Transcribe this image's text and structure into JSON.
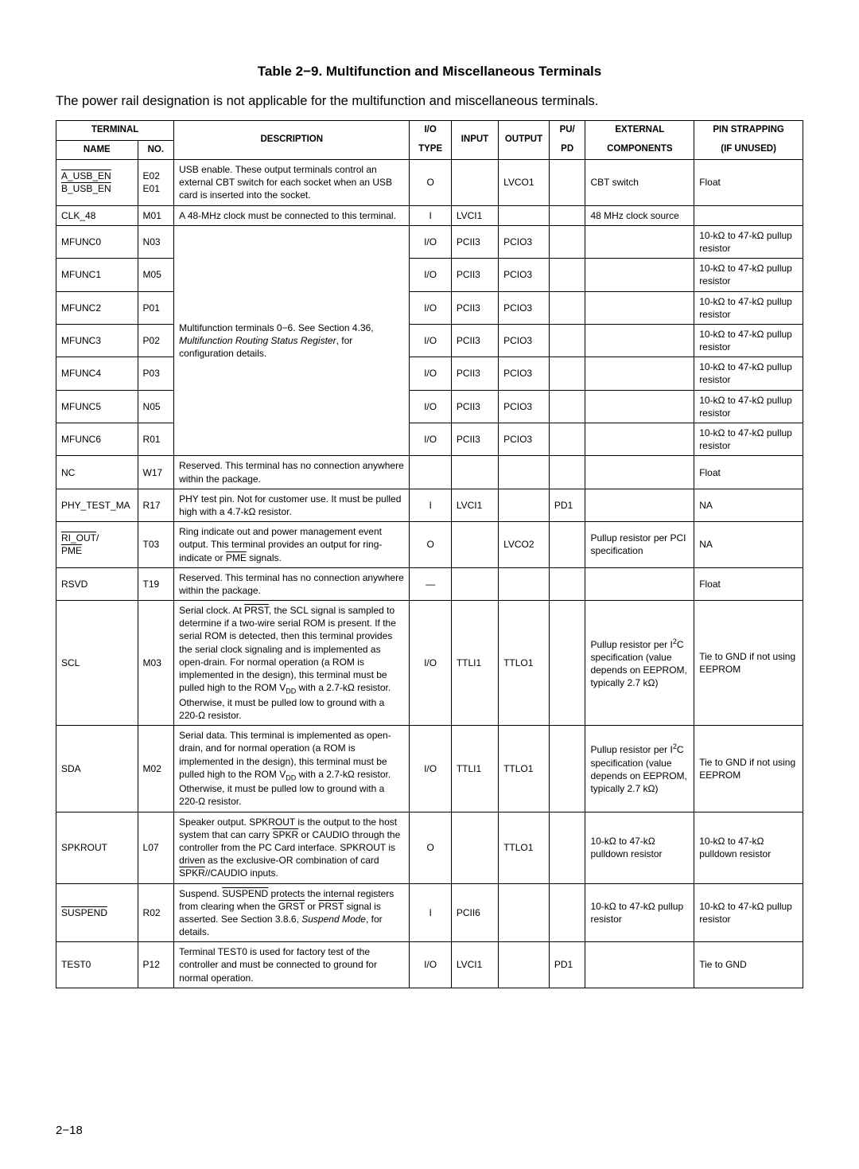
{
  "title": "Table 2−9. Multifunction and Miscellaneous Terminals",
  "intro": "The power rail designation is not applicable for the multifunction and miscellaneous terminals.",
  "headers": {
    "terminal": "TERMINAL",
    "name": "NAME",
    "no": "NO.",
    "description": "DESCRIPTION",
    "iotype_l1": "I/O",
    "iotype_l2": "TYPE",
    "input": "INPUT",
    "output": "OUTPUT",
    "pupd_l1": "PU/",
    "pupd_l2": "PD",
    "external_l1": "EXTERNAL",
    "external_l2": "COMPONENTS",
    "pin_l1": "PIN STRAPPING",
    "pin_l2": "(IF UNUSED)"
  },
  "rows": {
    "usb": {
      "name_a": "A_USB_EN",
      "name_b": "B_USB_EN",
      "no_a": "E02",
      "no_b": "E01",
      "desc": "USB enable. These output terminals control an external CBT switch for each socket when an USB card is inserted into the socket.",
      "iotype": "O",
      "output": "LVCO1",
      "ext": "CBT switch",
      "pin": "Float"
    },
    "clk48": {
      "name": "CLK_48",
      "no": "M01",
      "desc": "A 48-MHz clock must be connected to this terminal.",
      "iotype": "I",
      "input": "LVCI1",
      "ext": "48 MHz clock source"
    },
    "mfunc_desc_a": "Multifunction terminals 0−6. See Section 4.36, ",
    "mfunc_desc_b": "Multifunction Routing Status Register",
    "mfunc_desc_c": ", for configuration details.",
    "mfunc": [
      {
        "name": "MFUNC0",
        "no": "N03",
        "iotype": "I/O",
        "input": "PCII3",
        "output": "PCIO3",
        "pin": "10-kΩ to 47-kΩ pullup resistor"
      },
      {
        "name": "MFUNC1",
        "no": "M05",
        "iotype": "I/O",
        "input": "PCII3",
        "output": "PCIO3",
        "pin": "10-kΩ to 47-kΩ pullup resistor"
      },
      {
        "name": "MFUNC2",
        "no": "P01",
        "iotype": "I/O",
        "input": "PCII3",
        "output": "PCIO3",
        "pin": "10-kΩ to 47-kΩ pullup resistor"
      },
      {
        "name": "MFUNC3",
        "no": "P02",
        "iotype": "I/O",
        "input": "PCII3",
        "output": "PCIO3",
        "pin": "10-kΩ to 47-kΩ pullup resistor"
      },
      {
        "name": "MFUNC4",
        "no": "P03",
        "iotype": "I/O",
        "input": "PCII3",
        "output": "PCIO3",
        "pin": "10-kΩ to 47-kΩ pullup resistor"
      },
      {
        "name": "MFUNC5",
        "no": "N05",
        "iotype": "I/O",
        "input": "PCII3",
        "output": "PCIO3",
        "pin": "10-kΩ to 47-kΩ pullup resistor"
      },
      {
        "name": "MFUNC6",
        "no": "R01",
        "iotype": "I/O",
        "input": "PCII3",
        "output": "PCIO3",
        "pin": "10-kΩ to 47-kΩ pullup resistor"
      }
    ],
    "nc": {
      "name": "NC",
      "no": "W17",
      "desc": "Reserved. This terminal has no connection anywhere within the package.",
      "pin": "Float"
    },
    "phy": {
      "name": "PHY_TEST_MA",
      "no": "R17",
      "desc": "PHY test pin. Not for customer use. It must be pulled high with a 4.7-kΩ resistor.",
      "iotype": "I",
      "input": "LVCI1",
      "pupd": "PD1",
      "pin": "NA"
    },
    "riout": {
      "name_a": "RI_OUT",
      "name_b": "PME",
      "no": "T03",
      "desc_a": "Ring indicate out and power management event output. This terminal provides an output for ring-indicate or ",
      "desc_b": "PME",
      "desc_c": " signals.",
      "iotype": "O",
      "output": "LVCO2",
      "ext": "Pullup resistor per PCI specification",
      "pin": "NA"
    },
    "rsvd": {
      "name": "RSVD",
      "no": "T19",
      "desc": "Reserved. This terminal has no connection anywhere within the package.",
      "iotype": "—",
      "pin": "Float"
    },
    "scl": {
      "name": "SCL",
      "no": "M03",
      "desc_a": "Serial clock. At ",
      "desc_b": "PRST",
      "desc_c": ", the SCL signal is sampled to determine if a two-wire serial ROM is present. If the serial ROM is detected, then this terminal provides the serial clock signaling and is implemented as open-drain. For normal operation (a ROM is implemented in the design), this terminal must be pulled high to the ROM V",
      "desc_d": "DD",
      "desc_e": " with a 2.7-kΩ resistor. Otherwise, it must be pulled low to ground with a 220-Ω resistor.",
      "iotype": "I/O",
      "input": "TTLI1",
      "output": "TTLO1",
      "ext_a": "Pullup resistor per I",
      "ext_b": "2",
      "ext_c": "C specification (value depends on EEPROM, typically 2.7 kΩ)",
      "pin": "Tie to GND if not using EEPROM"
    },
    "sda": {
      "name": "SDA",
      "no": "M02",
      "desc_a": "Serial data. This terminal is implemented as open-drain, and for normal operation (a ROM is implemented in the design), this terminal must be pulled high to the ROM V",
      "desc_b": "DD",
      "desc_c": " with a 2.7-kΩ resistor. Otherwise, it must be pulled low to ground with a 220-Ω resistor.",
      "iotype": "I/O",
      "input": "TTLI1",
      "output": "TTLO1",
      "ext_a": "Pullup resistor per I",
      "ext_b": "2",
      "ext_c": "C specification (value depends on EEPROM, typically 2.7 kΩ)",
      "pin": "Tie to GND if not using EEPROM"
    },
    "spkr": {
      "name": "SPKROUT",
      "no": "L07",
      "desc_a": "Speaker output. SPKROUT is the output to the host system that can carry ",
      "desc_b": "SPKR",
      "desc_c": " or CAUDIO through the controller from the PC Card interface. SPKROUT is driven as the exclusive-OR combination of card ",
      "desc_d": "SPKR",
      "desc_e": "//CAUDIO inputs.",
      "iotype": "O",
      "output": "TTLO1",
      "ext": "10-kΩ to 47-kΩ pulldown resistor",
      "pin": "10-kΩ to 47-kΩ pulldown resistor"
    },
    "susp": {
      "name": "SUSPEND",
      "no": "R02",
      "desc_a": "Suspend. ",
      "desc_b": "SUSPEND",
      "desc_c": " protects the internal registers from clearing when the ",
      "desc_d": "GRST",
      "desc_e": " or ",
      "desc_f": "PRST",
      "desc_g": " signal is asserted. See Section 3.8.6, ",
      "desc_h": "Suspend Mode",
      "desc_i": ", for details.",
      "iotype": "I",
      "input": "PCII6",
      "ext": "10-kΩ to 47-kΩ pullup resistor",
      "pin": "10-kΩ to 47-kΩ pullup resistor"
    },
    "test0": {
      "name": "TEST0",
      "no": "P12",
      "desc": "Terminal TEST0 is used for factory test of the controller and must be connected to ground for normal operation.",
      "iotype": "I/O",
      "input": "LVCI1",
      "pupd": "PD1",
      "pin": "Tie to GND"
    }
  },
  "pagefoot": "2−18"
}
